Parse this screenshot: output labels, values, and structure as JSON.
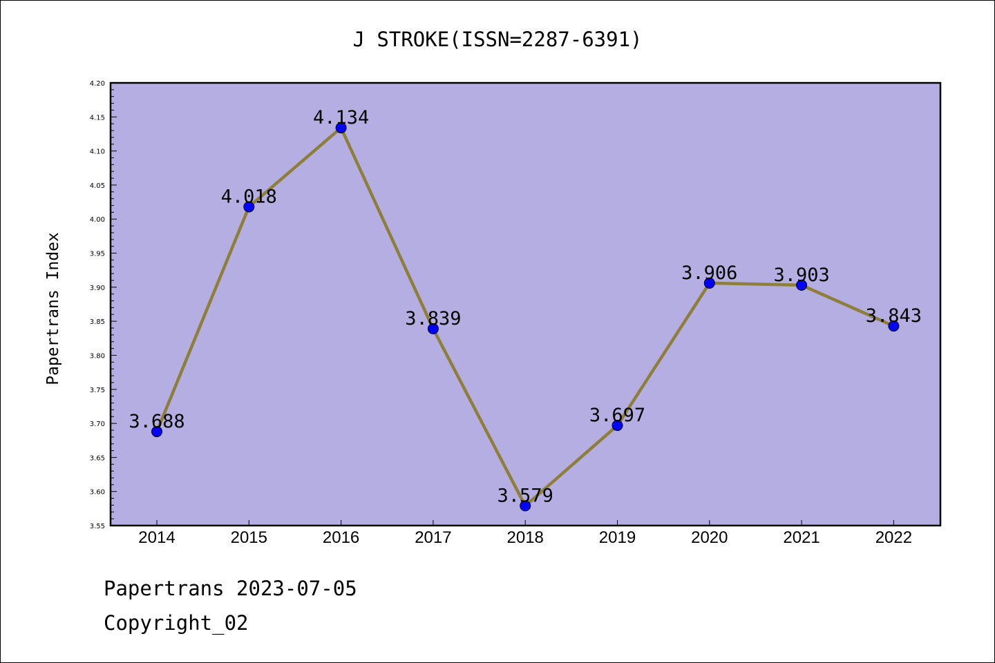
{
  "chart_data": {
    "type": "line",
    "title": "J STROKE(ISSN=2287-6391)",
    "xlabel": "",
    "ylabel": "Papertrans Index",
    "categories": [
      "2014",
      "2015",
      "2016",
      "2017",
      "2018",
      "2019",
      "2020",
      "2021",
      "2022"
    ],
    "series": [
      {
        "values": [
          3.688,
          4.018,
          4.134,
          3.839,
          3.579,
          3.697,
          3.906,
          3.903,
          3.843
        ],
        "labels": [
          "3.688",
          "4.018",
          "4.134",
          "3.839",
          "3.579",
          "3.697",
          "3.906",
          "3.903",
          "3.843"
        ]
      }
    ],
    "ylim": [
      3.55,
      4.2
    ],
    "yticks": [
      "3.55",
      "3.60",
      "3.65",
      "3.70",
      "3.75",
      "3.80",
      "3.85",
      "3.90",
      "3.95",
      "4.00",
      "4.05",
      "4.10",
      "4.15",
      "4.20"
    ],
    "grid": false,
    "legend": "none",
    "colors": {
      "plot_background": "#b5aee2",
      "line": "#8d7f3a",
      "marker": "#0000ff"
    }
  },
  "footer": {
    "date_line": "Papertrans 2023-07-05",
    "copyright": "Copyright_02"
  }
}
